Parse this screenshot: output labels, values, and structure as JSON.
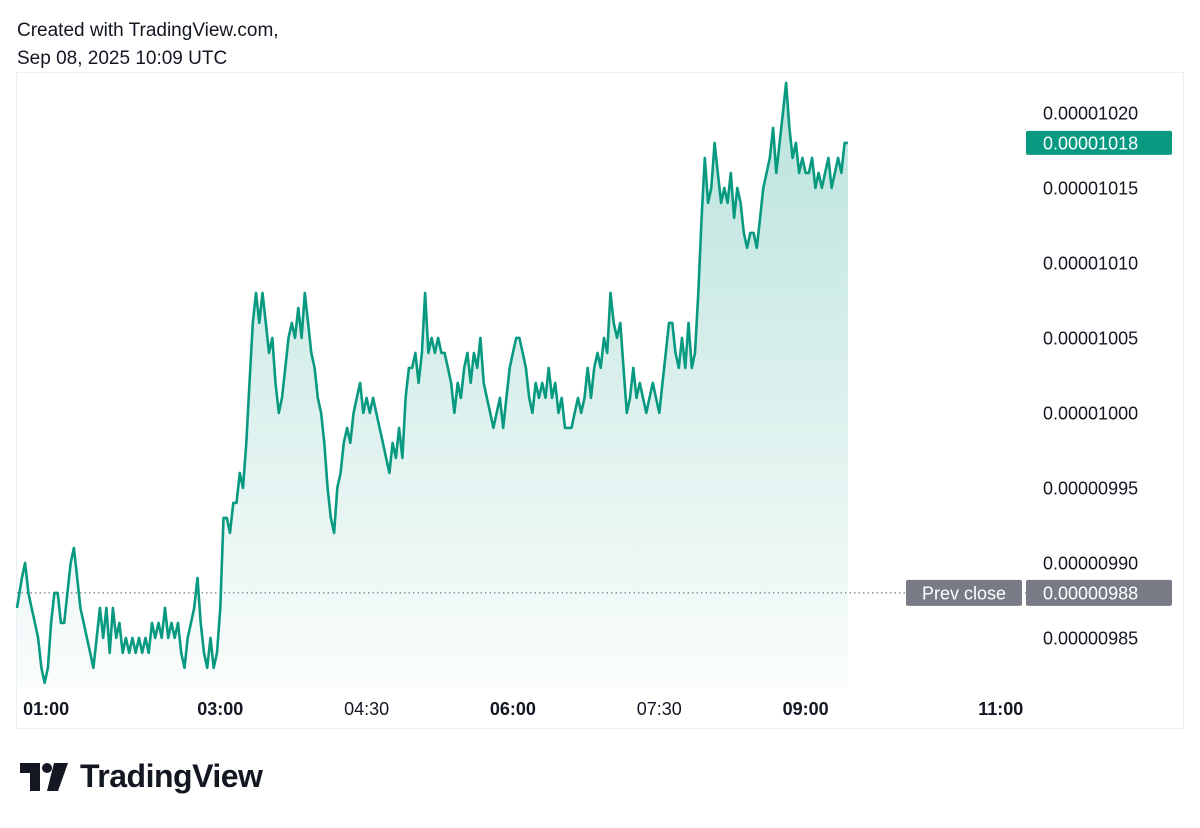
{
  "header": {
    "created_line": "Created with TradingView.com,",
    "date_line": "Sep 08, 2025 10:09 UTC"
  },
  "brand": {
    "name": "TradingView",
    "logo_icon": "tradingview-logo-icon"
  },
  "colors": {
    "line": "#089981",
    "fill_top": "#089981",
    "badge_last": "#089981",
    "badge_prev": "#787b86",
    "axis_text": "#131722",
    "prev_close_line": "#787b86"
  },
  "chart_data": {
    "type": "area",
    "title": "",
    "xlabel": "",
    "ylabel": "",
    "x_range": [
      "00:55",
      "11:10"
    ],
    "ylim": [
      9.8166e-06,
      1.02266e-05
    ],
    "y_ticks": [
      "0.00001020",
      "0.00001015",
      "0.00001010",
      "0.00001005",
      "0.00001000",
      "0.00000995",
      "0.00000990",
      "0.00000985"
    ],
    "x_ticks": [
      {
        "label": "01:00",
        "time": "01:00",
        "bold": true
      },
      {
        "label": "03:00",
        "time": "03:00",
        "bold": true
      },
      {
        "label": "04:30",
        "time": "04:30",
        "bold": false
      },
      {
        "label": "06:00",
        "time": "06:00",
        "bold": true
      },
      {
        "label": "07:30",
        "time": "07:30",
        "bold": false
      },
      {
        "label": "09:00",
        "time": "09:00",
        "bold": true
      },
      {
        "label": "11:00",
        "time": "11:00",
        "bold": true
      }
    ],
    "last_price": {
      "label": "0.00001018",
      "value": 1.018e-05
    },
    "prev_close": {
      "name": "Prev close",
      "label": "0.00000988",
      "value": 9.88e-06
    },
    "grid": false,
    "series": [
      {
        "values_unit": "price",
        "points": [
          [
            "00:55",
            9.87e-06
          ],
          [
            "00:58",
            9.89e-06
          ],
          [
            "01:00",
            9.9e-06
          ],
          [
            "01:02",
            9.88e-06
          ],
          [
            "01:04",
            9.87e-06
          ],
          [
            "01:06",
            9.86e-06
          ],
          [
            "01:08",
            9.85e-06
          ],
          [
            "01:10",
            9.83e-06
          ],
          [
            "01:12",
            9.82e-06
          ],
          [
            "01:14",
            9.83e-06
          ],
          [
            "01:16",
            9.86e-06
          ],
          [
            "01:18",
            9.88e-06
          ],
          [
            "01:20",
            9.88e-06
          ],
          [
            "01:22",
            9.86e-06
          ],
          [
            "01:24",
            9.86e-06
          ],
          [
            "01:26",
            9.88e-06
          ],
          [
            "01:28",
            9.9e-06
          ],
          [
            "01:30",
            9.91e-06
          ],
          [
            "01:32",
            9.89e-06
          ],
          [
            "01:34",
            9.87e-06
          ],
          [
            "01:36",
            9.86e-06
          ],
          [
            "01:38",
            9.85e-06
          ],
          [
            "01:40",
            9.84e-06
          ],
          [
            "01:42",
            9.83e-06
          ],
          [
            "01:44",
            9.85e-06
          ],
          [
            "01:46",
            9.87e-06
          ],
          [
            "01:48",
            9.85e-06
          ],
          [
            "01:50",
            9.87e-06
          ],
          [
            "01:52",
            9.84e-06
          ],
          [
            "01:54",
            9.87e-06
          ],
          [
            "01:56",
            9.85e-06
          ],
          [
            "01:58",
            9.86e-06
          ],
          [
            "02:00",
            9.84e-06
          ],
          [
            "02:02",
            9.85e-06
          ],
          [
            "02:04",
            9.84e-06
          ],
          [
            "02:06",
            9.85e-06
          ],
          [
            "02:08",
            9.84e-06
          ],
          [
            "02:10",
            9.85e-06
          ],
          [
            "02:12",
            9.84e-06
          ],
          [
            "02:14",
            9.85e-06
          ],
          [
            "02:16",
            9.84e-06
          ],
          [
            "02:18",
            9.86e-06
          ],
          [
            "02:20",
            9.85e-06
          ],
          [
            "02:22",
            9.86e-06
          ],
          [
            "02:24",
            9.85e-06
          ],
          [
            "02:26",
            9.87e-06
          ],
          [
            "02:28",
            9.85e-06
          ],
          [
            "02:30",
            9.86e-06
          ],
          [
            "02:32",
            9.85e-06
          ],
          [
            "02:34",
            9.86e-06
          ],
          [
            "02:36",
            9.84e-06
          ],
          [
            "02:38",
            9.83e-06
          ],
          [
            "02:40",
            9.85e-06
          ],
          [
            "02:42",
            9.86e-06
          ],
          [
            "02:44",
            9.87e-06
          ],
          [
            "02:46",
            9.89e-06
          ],
          [
            "02:48",
            9.86e-06
          ],
          [
            "02:50",
            9.84e-06
          ],
          [
            "02:52",
            9.83e-06
          ],
          [
            "02:54",
            9.85e-06
          ],
          [
            "02:56",
            9.83e-06
          ],
          [
            "02:58",
            9.84e-06
          ],
          [
            "03:00",
            9.87e-06
          ],
          [
            "03:02",
            9.93e-06
          ],
          [
            "03:04",
            9.93e-06
          ],
          [
            "03:06",
            9.92e-06
          ],
          [
            "03:08",
            9.94e-06
          ],
          [
            "03:10",
            9.94e-06
          ],
          [
            "03:12",
            9.96e-06
          ],
          [
            "03:14",
            9.95e-06
          ],
          [
            "03:16",
            9.98e-06
          ],
          [
            "03:18",
            1.002e-05
          ],
          [
            "03:20",
            1.006e-05
          ],
          [
            "03:22",
            1.008e-05
          ],
          [
            "03:24",
            1.006e-05
          ],
          [
            "03:26",
            1.008e-05
          ],
          [
            "03:28",
            1.006e-05
          ],
          [
            "03:30",
            1.004e-05
          ],
          [
            "03:32",
            1.005e-05
          ],
          [
            "03:34",
            1.002e-05
          ],
          [
            "03:36",
            1e-05
          ],
          [
            "03:38",
            1.001e-05
          ],
          [
            "03:40",
            1.003e-05
          ],
          [
            "03:42",
            1.005e-05
          ],
          [
            "03:44",
            1.006e-05
          ],
          [
            "03:46",
            1.005e-05
          ],
          [
            "03:48",
            1.007e-05
          ],
          [
            "03:50",
            1.005e-05
          ],
          [
            "03:52",
            1.008e-05
          ],
          [
            "03:54",
            1.006e-05
          ],
          [
            "03:56",
            1.004e-05
          ],
          [
            "03:58",
            1.003e-05
          ],
          [
            "04:00",
            1.001e-05
          ],
          [
            "04:02",
            1e-05
          ],
          [
            "04:04",
            9.98e-06
          ],
          [
            "04:06",
            9.95e-06
          ],
          [
            "04:08",
            9.93e-06
          ],
          [
            "04:10",
            9.92e-06
          ],
          [
            "04:12",
            9.95e-06
          ],
          [
            "04:14",
            9.96e-06
          ],
          [
            "04:16",
            9.98e-06
          ],
          [
            "04:18",
            9.99e-06
          ],
          [
            "04:20",
            9.98e-06
          ],
          [
            "04:22",
            1e-05
          ],
          [
            "04:24",
            1.001e-05
          ],
          [
            "04:26",
            1.002e-05
          ],
          [
            "04:28",
            1e-05
          ],
          [
            "04:30",
            1.001e-05
          ],
          [
            "04:32",
            1e-05
          ],
          [
            "04:34",
            1.001e-05
          ],
          [
            "04:36",
            1e-05
          ],
          [
            "04:38",
            9.99e-06
          ],
          [
            "04:40",
            9.98e-06
          ],
          [
            "04:42",
            9.97e-06
          ],
          [
            "04:44",
            9.96e-06
          ],
          [
            "04:46",
            9.98e-06
          ],
          [
            "04:48",
            9.97e-06
          ],
          [
            "04:50",
            9.99e-06
          ],
          [
            "04:52",
            9.97e-06
          ],
          [
            "04:54",
            1.001e-05
          ],
          [
            "04:56",
            1.003e-05
          ],
          [
            "04:58",
            1.003e-05
          ],
          [
            "05:00",
            1.004e-05
          ],
          [
            "05:02",
            1.002e-05
          ],
          [
            "05:04",
            1.004e-05
          ],
          [
            "05:06",
            1.008e-05
          ],
          [
            "05:08",
            1.004e-05
          ],
          [
            "05:10",
            1.005e-05
          ],
          [
            "05:12",
            1.004e-05
          ],
          [
            "05:14",
            1.005e-05
          ],
          [
            "05:16",
            1.004e-05
          ],
          [
            "05:18",
            1.004e-05
          ],
          [
            "05:20",
            1.003e-05
          ],
          [
            "05:22",
            1.002e-05
          ],
          [
            "05:24",
            1e-05
          ],
          [
            "05:26",
            1.002e-05
          ],
          [
            "05:28",
            1.001e-05
          ],
          [
            "05:30",
            1.003e-05
          ],
          [
            "05:32",
            1.004e-05
          ],
          [
            "05:34",
            1.002e-05
          ],
          [
            "05:36",
            1.004e-05
          ],
          [
            "05:38",
            1.003e-05
          ],
          [
            "05:40",
            1.005e-05
          ],
          [
            "05:42",
            1.002e-05
          ],
          [
            "05:44",
            1.001e-05
          ],
          [
            "05:46",
            1e-05
          ],
          [
            "05:48",
            9.99e-06
          ],
          [
            "05:50",
            1e-05
          ],
          [
            "05:52",
            1.001e-05
          ],
          [
            "05:54",
            9.99e-06
          ],
          [
            "05:56",
            1.001e-05
          ],
          [
            "05:58",
            1.003e-05
          ],
          [
            "06:00",
            1.004e-05
          ],
          [
            "06:02",
            1.005e-05
          ],
          [
            "06:04",
            1.005e-05
          ],
          [
            "06:06",
            1.004e-05
          ],
          [
            "06:08",
            1.003e-05
          ],
          [
            "06:10",
            1.001e-05
          ],
          [
            "06:12",
            1e-05
          ],
          [
            "06:14",
            1.002e-05
          ],
          [
            "06:16",
            1.001e-05
          ],
          [
            "06:18",
            1.002e-05
          ],
          [
            "06:20",
            1.001e-05
          ],
          [
            "06:22",
            1.003e-05
          ],
          [
            "06:24",
            1.001e-05
          ],
          [
            "06:26",
            1.002e-05
          ],
          [
            "06:28",
            1e-05
          ],
          [
            "06:30",
            1.001e-05
          ],
          [
            "06:32",
            9.99e-06
          ],
          [
            "06:34",
            9.99e-06
          ],
          [
            "06:36",
            9.99e-06
          ],
          [
            "06:38",
            1e-05
          ],
          [
            "06:40",
            1.001e-05
          ],
          [
            "06:42",
            1e-05
          ],
          [
            "06:44",
            1.001e-05
          ],
          [
            "06:46",
            1.003e-05
          ],
          [
            "06:48",
            1.001e-05
          ],
          [
            "06:50",
            1.003e-05
          ],
          [
            "06:52",
            1.004e-05
          ],
          [
            "06:54",
            1.003e-05
          ],
          [
            "06:56",
            1.005e-05
          ],
          [
            "06:58",
            1.004e-05
          ],
          [
            "07:00",
            1.008e-05
          ],
          [
            "07:02",
            1.006e-05
          ],
          [
            "07:04",
            1.005e-05
          ],
          [
            "07:06",
            1.006e-05
          ],
          [
            "07:08",
            1.003e-05
          ],
          [
            "07:10",
            1e-05
          ],
          [
            "07:12",
            1.001e-05
          ],
          [
            "07:14",
            1.003e-05
          ],
          [
            "07:16",
            1.001e-05
          ],
          [
            "07:18",
            1.002e-05
          ],
          [
            "07:20",
            1.001e-05
          ],
          [
            "07:22",
            1e-05
          ],
          [
            "07:24",
            1.001e-05
          ],
          [
            "07:26",
            1.002e-05
          ],
          [
            "07:28",
            1.001e-05
          ],
          [
            "07:30",
            1e-05
          ],
          [
            "07:32",
            1.002e-05
          ],
          [
            "07:34",
            1.004e-05
          ],
          [
            "07:36",
            1.006e-05
          ],
          [
            "07:38",
            1.006e-05
          ],
          [
            "07:40",
            1.004e-05
          ],
          [
            "07:42",
            1.003e-05
          ],
          [
            "07:44",
            1.005e-05
          ],
          [
            "07:46",
            1.003e-05
          ],
          [
            "07:48",
            1.006e-05
          ],
          [
            "07:50",
            1.003e-05
          ],
          [
            "07:52",
            1.004e-05
          ],
          [
            "07:54",
            1.008e-05
          ],
          [
            "07:56",
            1.013e-05
          ],
          [
            "07:58",
            1.017e-05
          ],
          [
            "08:00",
            1.014e-05
          ],
          [
            "08:02",
            1.015e-05
          ],
          [
            "08:04",
            1.018e-05
          ],
          [
            "08:06",
            1.016e-05
          ],
          [
            "08:08",
            1.014e-05
          ],
          [
            "08:10",
            1.015e-05
          ],
          [
            "08:12",
            1.014e-05
          ],
          [
            "08:14",
            1.016e-05
          ],
          [
            "08:16",
            1.013e-05
          ],
          [
            "08:18",
            1.015e-05
          ],
          [
            "08:20",
            1.014e-05
          ],
          [
            "08:22",
            1.012e-05
          ],
          [
            "08:24",
            1.011e-05
          ],
          [
            "08:26",
            1.012e-05
          ],
          [
            "08:28",
            1.012e-05
          ],
          [
            "08:30",
            1.011e-05
          ],
          [
            "08:32",
            1.013e-05
          ],
          [
            "08:34",
            1.015e-05
          ],
          [
            "08:36",
            1.016e-05
          ],
          [
            "08:38",
            1.017e-05
          ],
          [
            "08:40",
            1.019e-05
          ],
          [
            "08:42",
            1.016e-05
          ],
          [
            "08:44",
            1.018e-05
          ],
          [
            "08:46",
            1.02e-05
          ],
          [
            "08:48",
            1.022e-05
          ],
          [
            "08:50",
            1.019e-05
          ],
          [
            "08:52",
            1.017e-05
          ],
          [
            "08:54",
            1.018e-05
          ],
          [
            "08:56",
            1.016e-05
          ],
          [
            "08:58",
            1.017e-05
          ],
          [
            "09:00",
            1.016e-05
          ],
          [
            "09:02",
            1.016e-05
          ],
          [
            "09:04",
            1.017e-05
          ],
          [
            "09:06",
            1.015e-05
          ],
          [
            "09:08",
            1.016e-05
          ],
          [
            "09:10",
            1.015e-05
          ],
          [
            "09:12",
            1.016e-05
          ],
          [
            "09:14",
            1.017e-05
          ],
          [
            "09:16",
            1.015e-05
          ],
          [
            "09:18",
            1.016e-05
          ],
          [
            "09:20",
            1.017e-05
          ],
          [
            "09:22",
            1.016e-05
          ],
          [
            "09:24",
            1.018e-05
          ],
          [
            "09:26",
            1.018e-05
          ]
        ]
      }
    ]
  }
}
